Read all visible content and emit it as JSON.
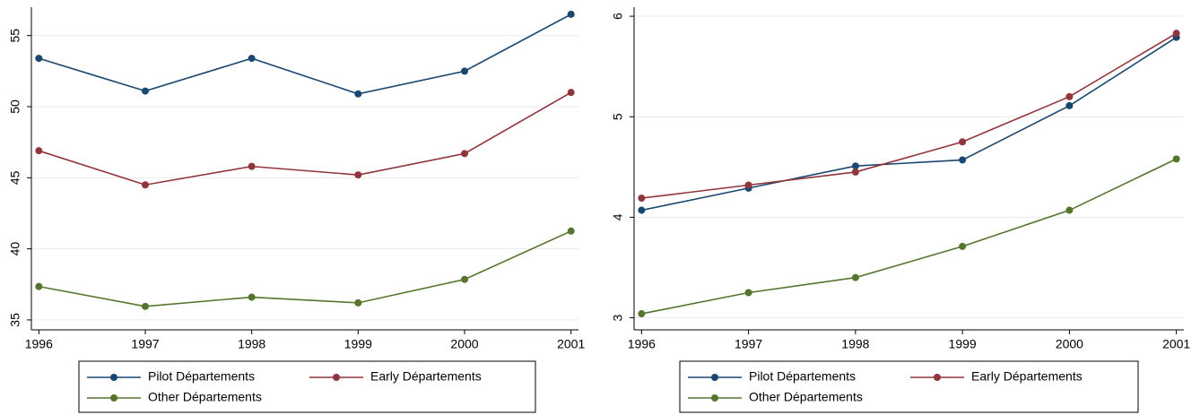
{
  "chart_data": [
    {
      "type": "line",
      "x": [
        1996,
        1997,
        1998,
        1999,
        2000,
        2001
      ],
      "xlim": [
        1995.93,
        2001.07
      ],
      "xticks": [
        1996,
        1997,
        1998,
        1999,
        2000,
        2001
      ],
      "ylim": [
        34.3,
        57.0
      ],
      "yticks": [
        35,
        40,
        45,
        50,
        55
      ],
      "grid": true,
      "series": [
        {
          "name": "Pilot Départements",
          "color": "#1a476f",
          "values": [
            53.4,
            51.1,
            53.4,
            50.9,
            52.5,
            56.5
          ]
        },
        {
          "name": "Early Départements",
          "color": "#90353b",
          "values": [
            46.9,
            44.5,
            45.8,
            45.2,
            46.7,
            51.0
          ]
        },
        {
          "name": "Other Départements",
          "color": "#55752f",
          "values": [
            37.35,
            35.95,
            36.6,
            36.2,
            37.85,
            41.25
          ]
        }
      ]
    },
    {
      "type": "line",
      "x": [
        1996,
        1997,
        1998,
        1999,
        2000,
        2001
      ],
      "xlim": [
        1995.93,
        2001.07
      ],
      "xticks": [
        1996,
        1997,
        1998,
        1999,
        2000,
        2001
      ],
      "ylim": [
        2.88,
        6.09
      ],
      "yticks": [
        3,
        4,
        5,
        6
      ],
      "grid": true,
      "series": [
        {
          "name": "Pilot Départements",
          "color": "#1a476f",
          "values": [
            4.07,
            4.29,
            4.51,
            4.57,
            5.11,
            5.79
          ]
        },
        {
          "name": "Early Départements",
          "color": "#90353b",
          "values": [
            4.19,
            4.32,
            4.45,
            4.75,
            5.2,
            5.83
          ]
        },
        {
          "name": "Other Départements",
          "color": "#55752f",
          "values": [
            3.04,
            3.25,
            3.4,
            3.71,
            4.07,
            4.58
          ]
        }
      ]
    }
  ]
}
